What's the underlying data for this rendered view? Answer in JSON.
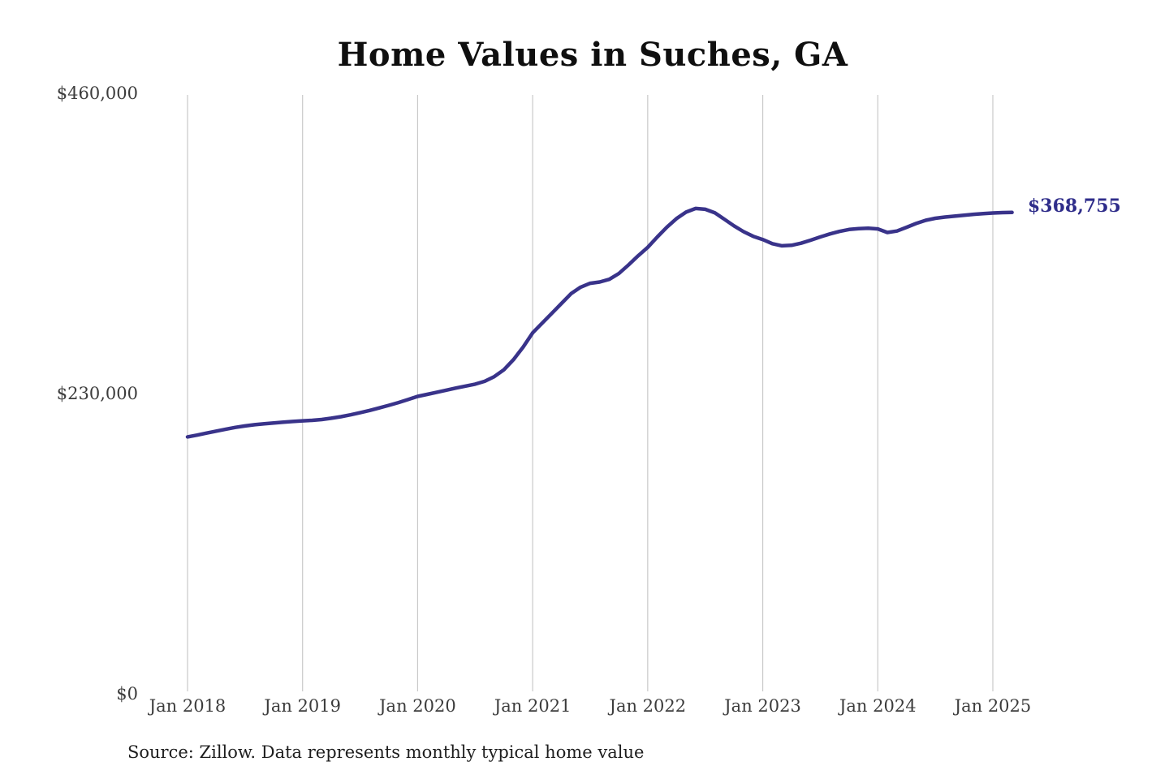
{
  "chart_data": {
    "type": "line",
    "title": "Home Values in Suches, GA",
    "source": "Source: Zillow. Data represents monthly typical home value",
    "end_label": "$368,755",
    "final_value": 368755,
    "xlabel": "",
    "ylabel": "",
    "ylim": [
      0,
      460000
    ],
    "grid": "vertical-only",
    "legend": "none",
    "line_color": "#39338a",
    "label_color": "#2f2d8a",
    "gridline_color": "#c9c9c9",
    "x_tick_labels": [
      "Jan 2018",
      "Jan 2019",
      "Jan 2020",
      "Jan 2021",
      "Jan 2022",
      "Jan 2023",
      "Jan 2024",
      "Jan 2025"
    ],
    "y_tick_labels": [
      "$0",
      "$230,000",
      "$460,000"
    ],
    "y_tick_values": [
      0,
      230000,
      460000
    ],
    "series": [
      {
        "name": "Monthly typical home value",
        "frequency": "monthly",
        "start": "2018-01",
        "end": "2025-03",
        "values": [
          196800,
          198200,
          199700,
          201200,
          202700,
          204100,
          205200,
          206100,
          206900,
          207500,
          208100,
          208600,
          209100,
          209500,
          210100,
          211100,
          212300,
          213700,
          215300,
          217100,
          219000,
          221000,
          223100,
          225400,
          227800,
          229400,
          231000,
          232600,
          234200,
          235700,
          237200,
          239400,
          243000,
          248200,
          256000,
          265500,
          276500,
          284000,
          291500,
          299000,
          306500,
          311500,
          314500,
          315500,
          317500,
          322000,
          328500,
          335500,
          342000,
          350000,
          357500,
          364000,
          369000,
          371800,
          371200,
          368500,
          363500,
          358500,
          354000,
          350500,
          348000,
          344800,
          343200,
          343600,
          345200,
          347500,
          350000,
          352300,
          354200,
          355700,
          356400,
          356700,
          356100,
          353400,
          354500,
          357400,
          360300,
          362700,
          364300,
          365200,
          365900,
          366600,
          367300,
          367900,
          368300,
          368600,
          368755
        ]
      }
    ]
  }
}
